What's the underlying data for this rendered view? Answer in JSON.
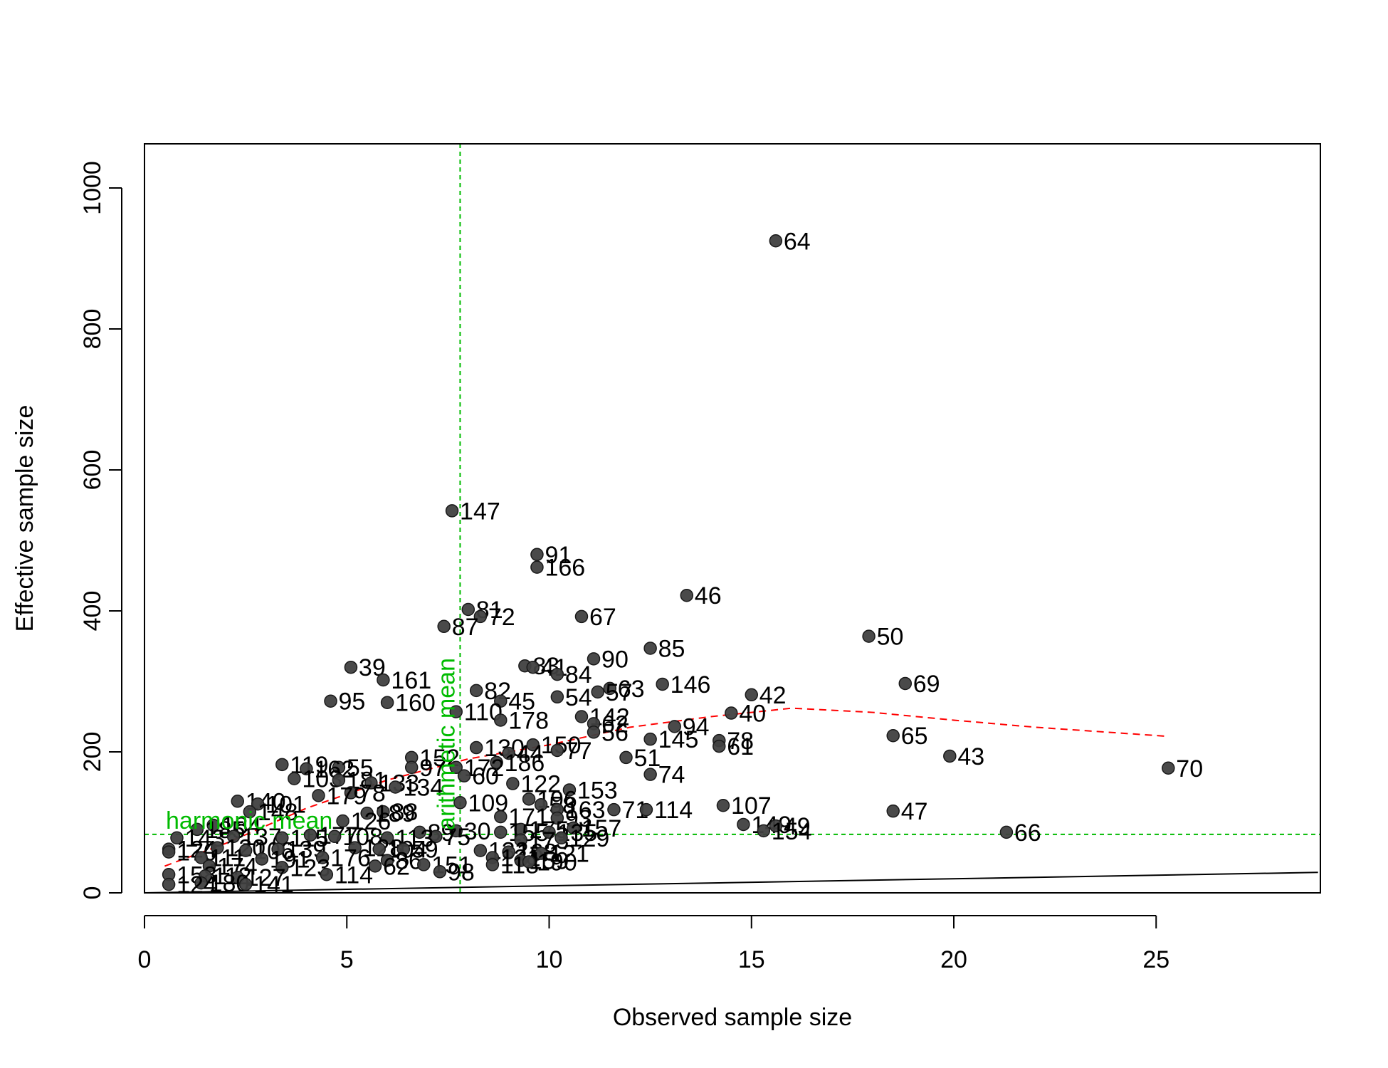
{
  "chart_data": {
    "type": "scatter",
    "xlabel": "Observed sample size",
    "ylabel": "Effective sample size",
    "xlim": [
      0,
      29
    ],
    "ylim": [
      0,
      1060
    ],
    "x_ticks": [
      0,
      5,
      10,
      15,
      20,
      25
    ],
    "y_ticks": [
      0,
      200,
      400,
      600,
      800,
      1000
    ],
    "grid": false,
    "colors": {
      "points": "#404040",
      "points_edge": "#1a1a1a",
      "labels": "#000000",
      "reference": "#00bb00",
      "trend": "#ff0000",
      "identity": "#000000"
    },
    "reference_lines": {
      "harmonic_mean": {
        "label": "harmonic mean",
        "y": 83
      },
      "arithmetic_mean": {
        "label": "arithmetic mean",
        "x": 7.8
      }
    },
    "identity_line": {
      "x": [
        0,
        29
      ],
      "y": [
        0,
        29
      ]
    },
    "trend_line": {
      "x": [
        0.5,
        2,
        4,
        6,
        8,
        10,
        12,
        14,
        16,
        18,
        20,
        22,
        25.3
      ],
      "y": [
        38,
        70,
        120,
        160,
        190,
        210,
        235,
        250,
        262,
        256,
        245,
        235,
        222
      ]
    },
    "points": [
      {
        "x": 15.6,
        "y": 925,
        "label": "64"
      },
      {
        "x": 7.6,
        "y": 542,
        "label": "147"
      },
      {
        "x": 9.7,
        "y": 480,
        "label": "91"
      },
      {
        "x": 9.7,
        "y": 462,
        "label": "166"
      },
      {
        "x": 13.4,
        "y": 422,
        "label": "46"
      },
      {
        "x": 8.0,
        "y": 402,
        "label": "81"
      },
      {
        "x": 8.3,
        "y": 392,
        "label": "72"
      },
      {
        "x": 10.8,
        "y": 392,
        "label": "67"
      },
      {
        "x": 7.4,
        "y": 378,
        "label": "87"
      },
      {
        "x": 17.9,
        "y": 364,
        "label": "50"
      },
      {
        "x": 12.5,
        "y": 347,
        "label": "85"
      },
      {
        "x": 11.1,
        "y": 332,
        "label": "90"
      },
      {
        "x": 9.4,
        "y": 322,
        "label": "83"
      },
      {
        "x": 9.6,
        "y": 320,
        "label": "41"
      },
      {
        "x": 5.1,
        "y": 320,
        "label": "39"
      },
      {
        "x": 10.2,
        "y": 310,
        "label": "84"
      },
      {
        "x": 5.9,
        "y": 302,
        "label": "161"
      },
      {
        "x": 18.8,
        "y": 297,
        "label": "69"
      },
      {
        "x": 12.8,
        "y": 296,
        "label": "146"
      },
      {
        "x": 11.5,
        "y": 290,
        "label": "63"
      },
      {
        "x": 8.2,
        "y": 287,
        "label": "82"
      },
      {
        "x": 11.2,
        "y": 285,
        "label": "57"
      },
      {
        "x": 15.0,
        "y": 281,
        "label": "42"
      },
      {
        "x": 10.2,
        "y": 278,
        "label": "54"
      },
      {
        "x": 8.8,
        "y": 272,
        "label": "45"
      },
      {
        "x": 4.6,
        "y": 272,
        "label": "95"
      },
      {
        "x": 6.0,
        "y": 270,
        "label": "160"
      },
      {
        "x": 7.7,
        "y": 257,
        "label": "110"
      },
      {
        "x": 14.5,
        "y": 255,
        "label": "40"
      },
      {
        "x": 10.8,
        "y": 250,
        "label": "142"
      },
      {
        "x": 8.8,
        "y": 245,
        "label": "178"
      },
      {
        "x": 11.1,
        "y": 240,
        "label": "62"
      },
      {
        "x": 13.1,
        "y": 236,
        "label": "94"
      },
      {
        "x": 11.1,
        "y": 228,
        "label": "56"
      },
      {
        "x": 18.5,
        "y": 223,
        "label": "65"
      },
      {
        "x": 12.5,
        "y": 218,
        "label": "145"
      },
      {
        "x": 14.2,
        "y": 216,
        "label": "78"
      },
      {
        "x": 14.2,
        "y": 208,
        "label": "61"
      },
      {
        "x": 9.6,
        "y": 210,
        "label": "150"
      },
      {
        "x": 8.2,
        "y": 206,
        "label": "130"
      },
      {
        "x": 10.2,
        "y": 202,
        "label": "77"
      },
      {
        "x": 9.0,
        "y": 198,
        "label": "44"
      },
      {
        "x": 19.9,
        "y": 194,
        "label": "43"
      },
      {
        "x": 11.9,
        "y": 192,
        "label": "51"
      },
      {
        "x": 6.6,
        "y": 192,
        "label": "152"
      },
      {
        "x": 8.7,
        "y": 185,
        "label": "186"
      },
      {
        "x": 3.4,
        "y": 182,
        "label": "119"
      },
      {
        "x": 6.6,
        "y": 178,
        "label": "97"
      },
      {
        "x": 4.8,
        "y": 178,
        "label": "55"
      },
      {
        "x": 7.7,
        "y": 178,
        "label": "172"
      },
      {
        "x": 25.3,
        "y": 177,
        "label": "70"
      },
      {
        "x": 4.0,
        "y": 176,
        "label": "162"
      },
      {
        "x": 12.5,
        "y": 168,
        "label": "74"
      },
      {
        "x": 7.9,
        "y": 166,
        "label": "60"
      },
      {
        "x": 3.7,
        "y": 162,
        "label": "103"
      },
      {
        "x": 4.8,
        "y": 160,
        "label": "181"
      },
      {
        "x": 5.6,
        "y": 156,
        "label": "133"
      },
      {
        "x": 9.1,
        "y": 155,
        "label": "122"
      },
      {
        "x": 6.2,
        "y": 150,
        "label": "134"
      },
      {
        "x": 10.5,
        "y": 146,
        "label": "153"
      },
      {
        "x": 5.1,
        "y": 142,
        "label": "78"
      },
      {
        "x": 4.3,
        "y": 138,
        "label": "179"
      },
      {
        "x": 9.5,
        "y": 133,
        "label": "196"
      },
      {
        "x": 2.3,
        "y": 130,
        "label": "140"
      },
      {
        "x": 2.8,
        "y": 126,
        "label": "101"
      },
      {
        "x": 7.8,
        "y": 128,
        "label": "109"
      },
      {
        "x": 14.3,
        "y": 124,
        "label": "107"
      },
      {
        "x": 9.8,
        "y": 125,
        "label": "58"
      },
      {
        "x": 10.2,
        "y": 118,
        "label": "163"
      },
      {
        "x": 11.6,
        "y": 118,
        "label": "71"
      },
      {
        "x": 12.4,
        "y": 118,
        "label": "114"
      },
      {
        "x": 18.5,
        "y": 116,
        "label": "47"
      },
      {
        "x": 5.9,
        "y": 115,
        "label": "88"
      },
      {
        "x": 5.5,
        "y": 113,
        "label": "189"
      },
      {
        "x": 2.6,
        "y": 115,
        "label": "148"
      },
      {
        "x": 8.8,
        "y": 108,
        "label": "171"
      },
      {
        "x": 10.2,
        "y": 106,
        "label": "93"
      },
      {
        "x": 4.9,
        "y": 102,
        "label": "126"
      },
      {
        "x": 1.7,
        "y": 96,
        "label": "184"
      },
      {
        "x": 14.8,
        "y": 97,
        "label": "149"
      },
      {
        "x": 15.6,
        "y": 95,
        "label": "49"
      },
      {
        "x": 15.3,
        "y": 88,
        "label": "154"
      },
      {
        "x": 10.6,
        "y": 92,
        "label": "157"
      },
      {
        "x": 9.3,
        "y": 90,
        "label": "175"
      },
      {
        "x": 7.7,
        "y": 88,
        "label": "30"
      },
      {
        "x": 8.8,
        "y": 86,
        "label": "155"
      },
      {
        "x": 10.0,
        "y": 86,
        "label": "135"
      },
      {
        "x": 21.3,
        "y": 86,
        "label": "66"
      },
      {
        "x": 1.3,
        "y": 90,
        "label": "185"
      },
      {
        "x": 0.8,
        "y": 78,
        "label": "143"
      },
      {
        "x": 2.2,
        "y": 80,
        "label": "137"
      },
      {
        "x": 3.4,
        "y": 78,
        "label": "115"
      },
      {
        "x": 4.1,
        "y": 82,
        "label": "177"
      },
      {
        "x": 4.7,
        "y": 80,
        "label": "108"
      },
      {
        "x": 6.8,
        "y": 86,
        "label": "89"
      },
      {
        "x": 7.2,
        "y": 80,
        "label": "75"
      },
      {
        "x": 6.0,
        "y": 78,
        "label": "113"
      },
      {
        "x": 9.3,
        "y": 75,
        "label": "173"
      },
      {
        "x": 10.3,
        "y": 78,
        "label": "129"
      },
      {
        "x": 0.6,
        "y": 62,
        "label": "124"
      },
      {
        "x": 0.6,
        "y": 58,
        "label": "170"
      },
      {
        "x": 1.8,
        "y": 64,
        "label": "120"
      },
      {
        "x": 2.5,
        "y": 60,
        "label": "106"
      },
      {
        "x": 3.3,
        "y": 62,
        "label": "139"
      },
      {
        "x": 5.2,
        "y": 64,
        "label": "128"
      },
      {
        "x": 5.8,
        "y": 62,
        "label": "104"
      },
      {
        "x": 6.4,
        "y": 62,
        "label": "59"
      },
      {
        "x": 8.3,
        "y": 60,
        "label": "132"
      },
      {
        "x": 9.0,
        "y": 58,
        "label": "168"
      },
      {
        "x": 9.8,
        "y": 56,
        "label": "121"
      },
      {
        "x": 1.4,
        "y": 50,
        "label": "111"
      },
      {
        "x": 2.9,
        "y": 48,
        "label": "191"
      },
      {
        "x": 4.4,
        "y": 50,
        "label": "176"
      },
      {
        "x": 6.0,
        "y": 46,
        "label": "86"
      },
      {
        "x": 8.6,
        "y": 50,
        "label": "131"
      },
      {
        "x": 9.3,
        "y": 46,
        "label": "159"
      },
      {
        "x": 1.6,
        "y": 38,
        "label": "174"
      },
      {
        "x": 3.4,
        "y": 36,
        "label": "123"
      },
      {
        "x": 5.7,
        "y": 38,
        "label": "62"
      },
      {
        "x": 6.9,
        "y": 40,
        "label": "151"
      },
      {
        "x": 7.3,
        "y": 30,
        "label": "98"
      },
      {
        "x": 8.6,
        "y": 40,
        "label": "118"
      },
      {
        "x": 9.5,
        "y": 44,
        "label": "190"
      },
      {
        "x": 0.6,
        "y": 26,
        "label": "158"
      },
      {
        "x": 1.5,
        "y": 24,
        "label": "112"
      },
      {
        "x": 2.3,
        "y": 22,
        "label": "127"
      },
      {
        "x": 4.5,
        "y": 26,
        "label": "114"
      },
      {
        "x": 1.4,
        "y": 14,
        "label": "180"
      },
      {
        "x": 2.5,
        "y": 12,
        "label": "141"
      },
      {
        "x": 0.6,
        "y": 12,
        "label": "124"
      }
    ]
  }
}
